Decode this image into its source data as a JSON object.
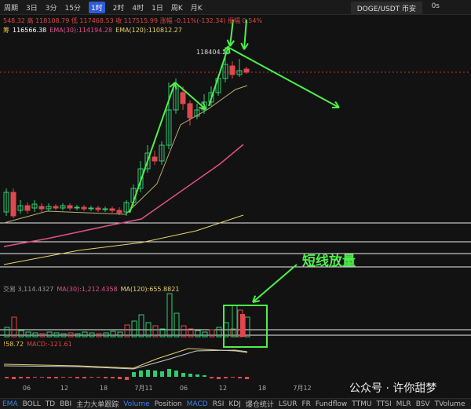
{
  "toolbar": {
    "items": [
      "周期",
      "3日",
      "3分",
      "15分",
      "1时",
      "2时",
      "4时",
      "1日",
      "周K",
      "月K"
    ],
    "active": "1时",
    "pair": "DOGE/USDT 币安",
    "timer": "0s"
  },
  "info_line": "548.32 高 118108.79 低 117468.53 收 117515.99 涨幅 -0.11%(-132.34) 振幅 0.54%",
  "ema_line": {
    "lead": "筹",
    "items": [
      "116566.38",
      "EMA(30):114194.28",
      "EMA(120):110812.27"
    ]
  },
  "price_label": "118404.22",
  "annotation": "短线放量",
  "volume_line": {
    "items": [
      "交易 3,114.4327",
      "MA(30):1,212.4358",
      "MA(120):655.8821"
    ]
  },
  "macd_line": {
    "items": [
      "!58.72",
      "MACD:-121.61"
    ]
  },
  "x_labels": [
    "06",
    "12",
    "18",
    "7月11",
    "06",
    "12",
    "18",
    "7月12"
  ],
  "tabs": {
    "items": [
      "EMA",
      "BOLL",
      "TD",
      "BBI",
      "主力大单跟踪",
      "Volume",
      "Position",
      "MACD",
      "RSI",
      "KDJ",
      "爆仓统计",
      "LSUR",
      "FR",
      "Fundflow",
      "TTMU",
      "TTSI",
      "MLR",
      "BSV",
      "TVolume"
    ],
    "active": [
      "EMA",
      "Volume",
      "MACD"
    ]
  },
  "watermark": "公众号 · 许你甜梦"
}
